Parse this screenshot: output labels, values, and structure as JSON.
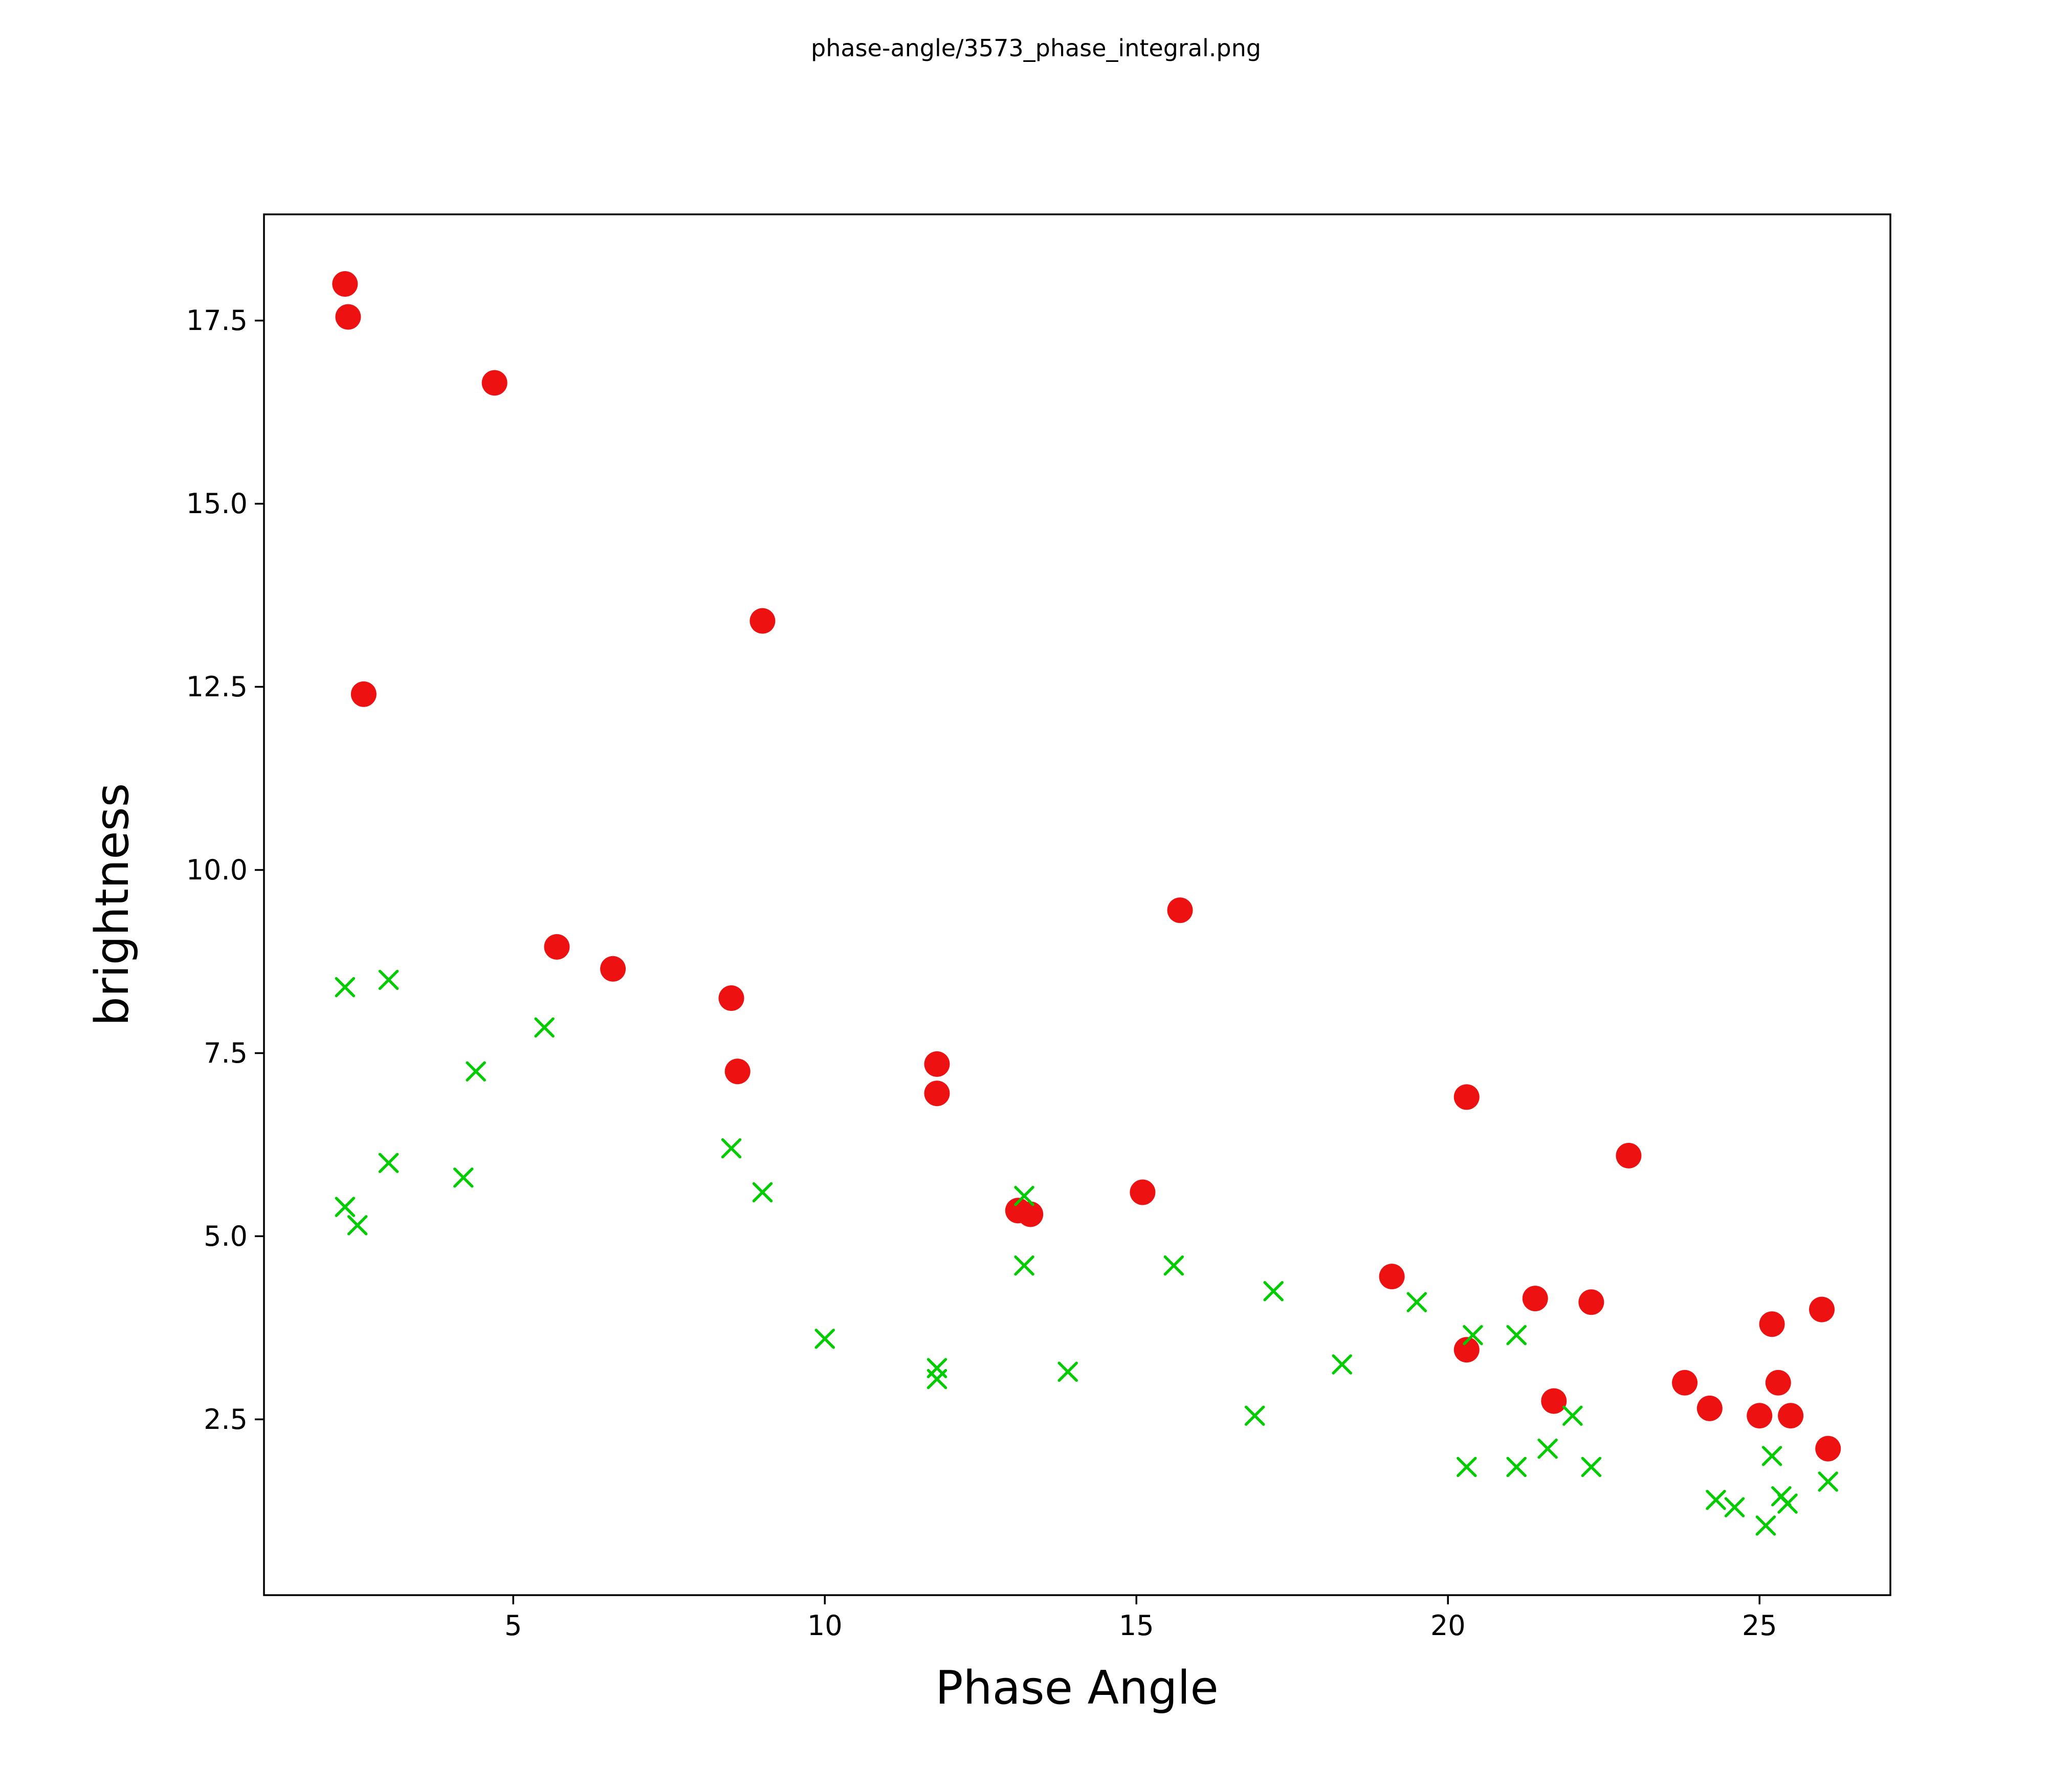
{
  "figure": {
    "title": "phase-angle/3573_phase_integral.png"
  },
  "chart_data": {
    "type": "scatter",
    "title": "phase-angle/3573_phase_integral.png",
    "xlabel": "Phase Angle",
    "ylabel": "brightness",
    "xlim": [
      1.0,
      27.1
    ],
    "ylim": [
      0.1,
      18.95
    ],
    "x_ticks": [
      5,
      10,
      15,
      20,
      25
    ],
    "x_tick_labels": [
      "5",
      "10",
      "15",
      "20",
      "25"
    ],
    "y_ticks": [
      2.5,
      5.0,
      7.5,
      10.0,
      12.5,
      15.0,
      17.5
    ],
    "y_tick_labels": [
      "2.5",
      "5.0",
      "7.5",
      "10.0",
      "12.5",
      "15.0",
      "17.5"
    ],
    "grid": false,
    "legend": null,
    "series": [
      {
        "name": "red-circles",
        "marker": "circle",
        "color": "#ee1111",
        "points": [
          [
            2.3,
            18.0
          ],
          [
            2.35,
            17.55
          ],
          [
            4.7,
            16.65
          ],
          [
            2.6,
            12.4
          ],
          [
            9.0,
            13.4
          ],
          [
            5.7,
            8.95
          ],
          [
            6.6,
            8.65
          ],
          [
            8.5,
            8.25
          ],
          [
            8.6,
            7.25
          ],
          [
            15.7,
            9.45
          ],
          [
            11.8,
            7.35
          ],
          [
            11.8,
            6.95
          ],
          [
            13.1,
            5.35
          ],
          [
            13.3,
            5.3
          ],
          [
            15.1,
            5.6
          ],
          [
            19.1,
            4.45
          ],
          [
            20.3,
            6.9
          ],
          [
            20.3,
            3.45
          ],
          [
            21.4,
            4.15
          ],
          [
            21.7,
            2.75
          ],
          [
            22.3,
            4.1
          ],
          [
            22.9,
            6.1
          ],
          [
            23.8,
            3.0
          ],
          [
            24.2,
            2.65
          ],
          [
            25.0,
            2.55
          ],
          [
            25.2,
            3.8
          ],
          [
            25.3,
            3.0
          ],
          [
            25.5,
            2.55
          ],
          [
            26.0,
            4.0
          ],
          [
            26.1,
            2.1
          ]
        ]
      },
      {
        "name": "green-x",
        "marker": "x",
        "color": "#00cc00",
        "points": [
          [
            2.3,
            8.4
          ],
          [
            3.0,
            8.5
          ],
          [
            5.5,
            7.85
          ],
          [
            4.4,
            7.25
          ],
          [
            3.0,
            6.0
          ],
          [
            4.2,
            5.8
          ],
          [
            2.3,
            5.4
          ],
          [
            2.5,
            5.15
          ],
          [
            8.5,
            6.2
          ],
          [
            9.0,
            5.6
          ],
          [
            10.0,
            3.6
          ],
          [
            11.8,
            3.2
          ],
          [
            11.8,
            3.05
          ],
          [
            13.2,
            5.55
          ],
          [
            13.2,
            4.6
          ],
          [
            13.9,
            3.15
          ],
          [
            15.6,
            4.6
          ],
          [
            17.2,
            4.25
          ],
          [
            16.9,
            2.55
          ],
          [
            18.3,
            3.25
          ],
          [
            19.5,
            4.1
          ],
          [
            20.4,
            3.65
          ],
          [
            21.1,
            3.65
          ],
          [
            20.3,
            1.85
          ],
          [
            21.1,
            1.85
          ],
          [
            21.6,
            2.1
          ],
          [
            22.0,
            2.55
          ],
          [
            22.3,
            1.85
          ],
          [
            24.3,
            1.4
          ],
          [
            24.6,
            1.3
          ],
          [
            25.1,
            1.05
          ],
          [
            25.2,
            2.0
          ],
          [
            25.35,
            1.45
          ],
          [
            25.45,
            1.35
          ],
          [
            26.1,
            1.65
          ]
        ]
      }
    ]
  }
}
